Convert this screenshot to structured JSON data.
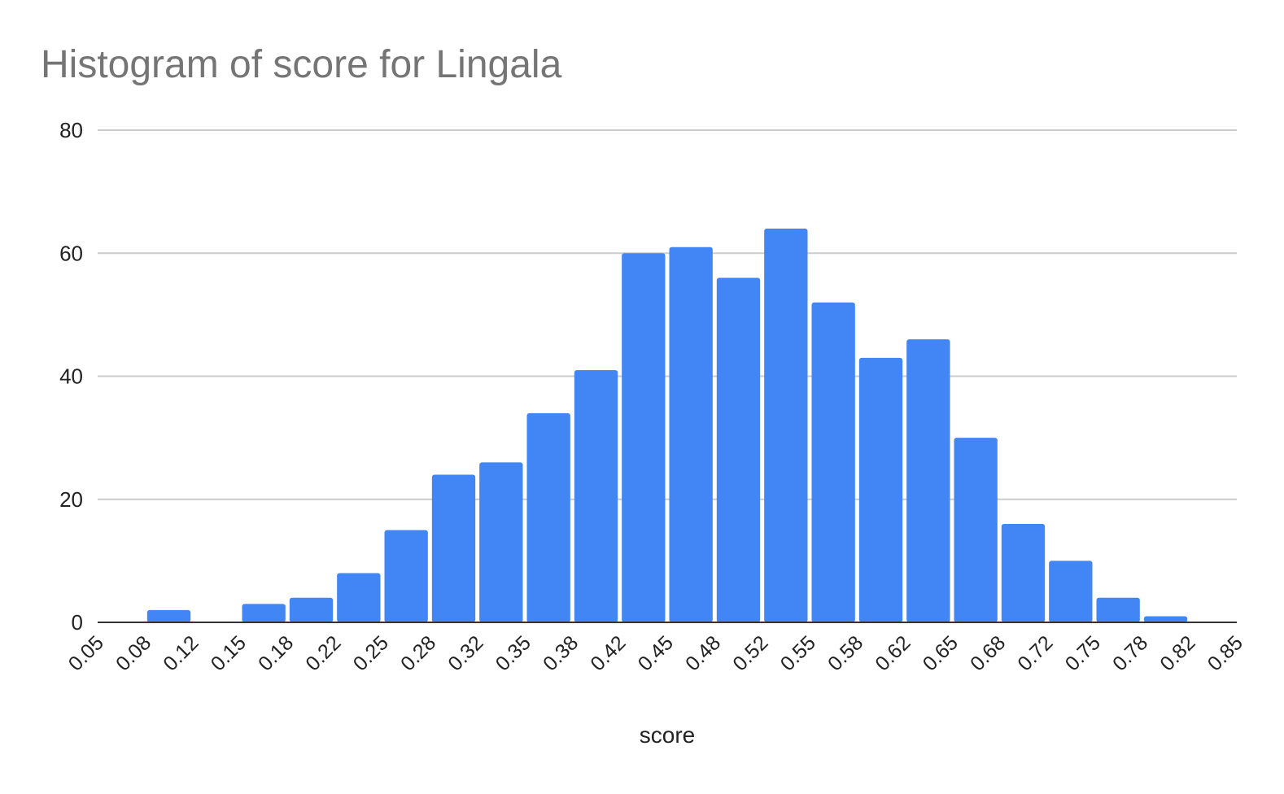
{
  "chart_data": {
    "type": "bar",
    "title": "Histogram of score for Lingala",
    "xlabel": "score",
    "ylabel": "",
    "ylim": [
      0,
      80
    ],
    "yticks": [
      "0",
      "20",
      "40",
      "60",
      "80"
    ],
    "xticks": [
      "0.05",
      "0.08",
      "0.12",
      "0.15",
      "0.18",
      "0.22",
      "0.25",
      "0.28",
      "0.32",
      "0.35",
      "0.38",
      "0.42",
      "0.45",
      "0.48",
      "0.52",
      "0.55",
      "0.58",
      "0.62",
      "0.65",
      "0.68",
      "0.72",
      "0.75",
      "0.78",
      "0.82",
      "0.85"
    ],
    "values": [
      0,
      2,
      0,
      3,
      4,
      8,
      15,
      24,
      26,
      34,
      41,
      60,
      61,
      56,
      64,
      52,
      43,
      46,
      30,
      16,
      10,
      4,
      1,
      0
    ],
    "grid": true,
    "legend": "none",
    "color": "#4285f4"
  }
}
